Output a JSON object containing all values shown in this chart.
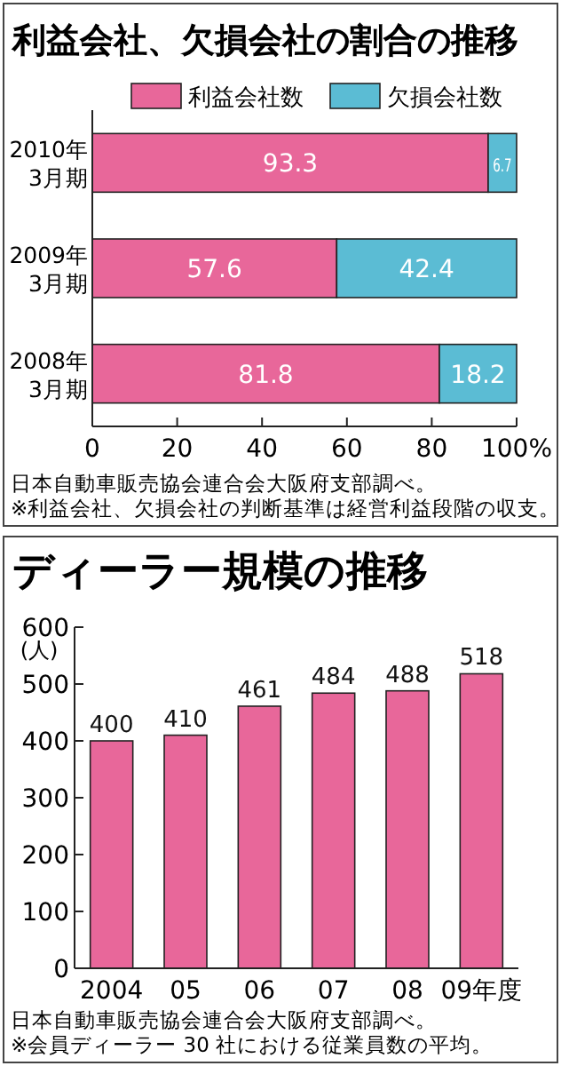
{
  "chart_data": [
    {
      "type": "bar",
      "title": "利益会社、欠損会社の割合の推移",
      "orientation": "horizontal",
      "stacked": true,
      "categories": [
        "2010年\n3月期",
        "2009年\n3月期",
        "2008年\n3月期"
      ],
      "series": [
        {
          "name": "利益会社数",
          "color": "#e8679a",
          "values": [
            93.3,
            57.6,
            81.8
          ]
        },
        {
          "name": "欠損会社数",
          "color": "#5bbcd4",
          "values": [
            6.7,
            42.4,
            18.2
          ]
        }
      ],
      "xlim": [
        0,
        100
      ],
      "xticks": [
        0,
        20,
        40,
        60,
        80,
        {
          "value": 100,
          "label": "100%"
        }
      ],
      "legend": "top",
      "data_labels": true,
      "annotations": [
        "日本自動車販売協会連合会大阪府支部調べ。",
        "※利益会社、欠損会社の判断基準は経営利益段階の収支。"
      ]
    },
    {
      "type": "bar",
      "title": "ディーラー規模の推移",
      "categories": [
        "2004",
        "05",
        "06",
        "07",
        "08",
        "09年度"
      ],
      "series": [
        {
          "color": "#e8679a",
          "values": [
            400,
            410,
            461,
            484,
            488,
            518
          ]
        }
      ],
      "ylabel": "(人)",
      "ylim": [
        0,
        600
      ],
      "yticks": [
        0,
        100,
        200,
        300,
        400,
        500,
        600
      ],
      "data_labels": true,
      "annotations": [
        "日本自動車販売協会連合会大阪府支部調べ。",
        "※会員ディーラー 30 社における従業員数の平均。"
      ]
    }
  ]
}
